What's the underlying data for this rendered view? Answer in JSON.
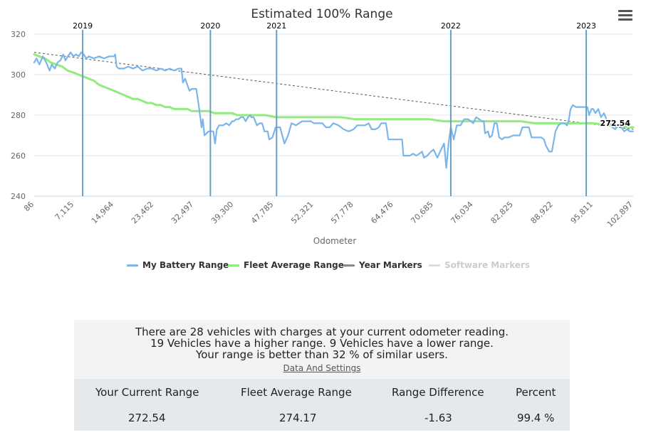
{
  "chart_data": {
    "type": "line",
    "title": "Estimated 100% Range",
    "xlabel": "Odometer",
    "ylabel": "",
    "ylim": [
      240,
      320
    ],
    "yticks": [
      240,
      260,
      280,
      300,
      320
    ],
    "xlim": [
      86,
      102897
    ],
    "xticks": [
      86,
      7115,
      14964,
      23462,
      32497,
      39300,
      47785,
      52321,
      57778,
      64476,
      70685,
      76034,
      82825,
      88922,
      95811,
      102897
    ],
    "xtick_labels": [
      "86",
      "7,115",
      "14,964",
      "23,462",
      "32,497",
      "39,300",
      "47,785",
      "52,321",
      "57,778",
      "64,476",
      "70,685",
      "76,034",
      "82,825",
      "88,922",
      "95,811",
      "102,897"
    ],
    "grid": true,
    "legend_position": "bottom",
    "year_markers": [
      {
        "label": "2019",
        "x": 8800
      },
      {
        "label": "2020",
        "x": 35300
      },
      {
        "label": "2021",
        "x": 48100
      },
      {
        "label": "2022",
        "x": 73000
      },
      {
        "label": "2023",
        "x": 94600
      }
    ],
    "trend_line": {
      "start": [
        86,
        311
      ],
      "end": [
        102897,
        273
      ]
    },
    "end_label": "272.54",
    "series": [
      {
        "name": "My Battery Range",
        "color": "#7cb5ec",
        "points": [
          [
            86,
            306
          ],
          [
            500,
            308
          ],
          [
            1000,
            305
          ],
          [
            1600,
            309
          ],
          [
            2200,
            306
          ],
          [
            2800,
            302
          ],
          [
            3200,
            305
          ],
          [
            3700,
            303
          ],
          [
            4200,
            306
          ],
          [
            4700,
            307
          ],
          [
            5200,
            310
          ],
          [
            5600,
            307
          ],
          [
            6000,
            309
          ],
          [
            6500,
            311
          ],
          [
            7000,
            309
          ],
          [
            7500,
            310
          ],
          [
            8000,
            309
          ],
          [
            8500,
            311
          ],
          [
            9000,
            310
          ],
          [
            9500,
            308
          ],
          [
            10000,
            309
          ],
          [
            11000,
            308
          ],
          [
            12000,
            309
          ],
          [
            13000,
            308
          ],
          [
            14000,
            309
          ],
          [
            14964,
            309
          ],
          [
            15200,
            310
          ],
          [
            15500,
            304
          ],
          [
            16000,
            303
          ],
          [
            17000,
            303
          ],
          [
            18000,
            304
          ],
          [
            19000,
            303
          ],
          [
            20000,
            304
          ],
          [
            21000,
            302
          ],
          [
            22000,
            303
          ],
          [
            23000,
            303
          ],
          [
            24000,
            302
          ],
          [
            25000,
            303
          ],
          [
            26000,
            302
          ],
          [
            27000,
            303
          ],
          [
            28000,
            302
          ],
          [
            29000,
            303
          ],
          [
            29700,
            303
          ],
          [
            30000,
            296
          ],
          [
            30500,
            298
          ],
          [
            31000,
            295
          ],
          [
            31500,
            292
          ],
          [
            32000,
            293
          ],
          [
            32700,
            293
          ],
          [
            32900,
            293
          ],
          [
            33200,
            287
          ],
          [
            33500,
            281
          ],
          [
            33800,
            274
          ],
          [
            34000,
            278
          ],
          [
            34300,
            270
          ],
          [
            35000,
            272
          ],
          [
            35800,
            272
          ],
          [
            36100,
            266
          ],
          [
            36400,
            273
          ],
          [
            36800,
            275
          ],
          [
            37500,
            275
          ],
          [
            38000,
            276
          ],
          [
            38500,
            275
          ],
          [
            39000,
            277
          ],
          [
            39300,
            277
          ],
          [
            39800,
            278
          ],
          [
            40300,
            278
          ],
          [
            40800,
            279
          ],
          [
            41300,
            279
          ],
          [
            41800,
            277
          ],
          [
            42300,
            279
          ],
          [
            42800,
            280
          ],
          [
            43000,
            279
          ],
          [
            43500,
            279
          ],
          [
            44200,
            275
          ],
          [
            44800,
            276
          ],
          [
            45300,
            276
          ],
          [
            45800,
            272
          ],
          [
            46500,
            272
          ],
          [
            46800,
            268
          ],
          [
            47500,
            269
          ],
          [
            48000,
            274
          ],
          [
            48500,
            274
          ],
          [
            49000,
            266
          ],
          [
            49400,
            270
          ],
          [
            49800,
            276
          ],
          [
            50300,
            275
          ],
          [
            51000,
            277
          ],
          [
            52000,
            277
          ],
          [
            52321,
            276
          ],
          [
            53000,
            276
          ],
          [
            53500,
            276
          ],
          [
            54000,
            274
          ],
          [
            54500,
            274
          ],
          [
            55000,
            276
          ],
          [
            55700,
            275
          ],
          [
            56400,
            273
          ],
          [
            57100,
            272
          ],
          [
            57778,
            273
          ],
          [
            58400,
            275
          ],
          [
            59000,
            275
          ],
          [
            59700,
            275
          ],
          [
            60300,
            276
          ],
          [
            60800,
            273
          ],
          [
            61400,
            273
          ],
          [
            62000,
            274
          ],
          [
            62400,
            276
          ],
          [
            62800,
            276
          ],
          [
            63200,
            276
          ],
          [
            63600,
            268
          ],
          [
            64000,
            268
          ],
          [
            64476,
            268
          ],
          [
            65000,
            268
          ],
          [
            65500,
            268
          ],
          [
            65800,
            268
          ],
          [
            66000,
            260
          ],
          [
            66500,
            260
          ],
          [
            67000,
            260
          ],
          [
            67500,
            261
          ],
          [
            68000,
            260
          ],
          [
            68500,
            261
          ],
          [
            68900,
            262
          ],
          [
            69200,
            259
          ],
          [
            69700,
            260
          ],
          [
            70300,
            262
          ],
          [
            70685,
            263
          ],
          [
            71200,
            259
          ],
          [
            71700,
            263
          ],
          [
            72100,
            266
          ],
          [
            72400,
            254
          ],
          [
            72700,
            266
          ],
          [
            73000,
            274
          ],
          [
            73400,
            268
          ],
          [
            73800,
            275
          ],
          [
            74300,
            275
          ],
          [
            74800,
            278
          ],
          [
            75300,
            278
          ],
          [
            75700,
            277
          ],
          [
            76000,
            276
          ],
          [
            76500,
            279
          ],
          [
            77000,
            278
          ],
          [
            77500,
            277
          ],
          [
            77800,
            277
          ],
          [
            78000,
            271
          ],
          [
            78500,
            272
          ],
          [
            78800,
            269
          ],
          [
            79200,
            270
          ],
          [
            79600,
            276
          ],
          [
            80000,
            276
          ],
          [
            80400,
            269
          ],
          [
            80900,
            268
          ],
          [
            81300,
            269
          ],
          [
            82000,
            269
          ],
          [
            82825,
            270
          ],
          [
            83400,
            270
          ],
          [
            83800,
            270
          ],
          [
            84200,
            274
          ],
          [
            84700,
            274
          ],
          [
            85200,
            274
          ],
          [
            85600,
            269
          ],
          [
            86100,
            269
          ],
          [
            86600,
            269
          ],
          [
            87100,
            269
          ],
          [
            87500,
            268
          ],
          [
            87800,
            265
          ],
          [
            88300,
            262
          ],
          [
            88700,
            262
          ],
          [
            88922,
            266
          ],
          [
            89300,
            272
          ],
          [
            89800,
            275
          ],
          [
            90300,
            276
          ],
          [
            90800,
            276
          ],
          [
            91300,
            275
          ],
          [
            91600,
            278
          ],
          [
            91900,
            283
          ],
          [
            92300,
            285
          ],
          [
            92800,
            284
          ],
          [
            93300,
            284
          ],
          [
            93800,
            284
          ],
          [
            94300,
            284
          ],
          [
            94800,
            284
          ],
          [
            95100,
            280
          ],
          [
            95500,
            283
          ],
          [
            95811,
            283
          ],
          [
            96200,
            281
          ],
          [
            96700,
            283
          ],
          [
            97200,
            279
          ],
          [
            97700,
            281
          ],
          [
            98300,
            277
          ],
          [
            98800,
            276
          ],
          [
            99200,
            274
          ],
          [
            99700,
            273
          ],
          [
            100300,
            275
          ],
          [
            100800,
            274
          ],
          [
            101300,
            272
          ],
          [
            101800,
            273
          ],
          [
            102300,
            272
          ],
          [
            102897,
            272
          ]
        ]
      },
      {
        "name": "Fleet Average Range",
        "color": "#90ed7d",
        "points": [
          [
            86,
            310
          ],
          [
            1000,
            309
          ],
          [
            2000,
            308
          ],
          [
            3000,
            306
          ],
          [
            4000,
            305
          ],
          [
            5000,
            304
          ],
          [
            6000,
            302
          ],
          [
            7000,
            301
          ],
          [
            8000,
            300
          ],
          [
            9000,
            299
          ],
          [
            10000,
            298
          ],
          [
            11000,
            297
          ],
          [
            12000,
            295
          ],
          [
            13000,
            294
          ],
          [
            14000,
            293
          ],
          [
            15000,
            292
          ],
          [
            16000,
            291
          ],
          [
            17000,
            290
          ],
          [
            18000,
            289
          ],
          [
            19000,
            288
          ],
          [
            20000,
            288
          ],
          [
            21000,
            287
          ],
          [
            22000,
            286
          ],
          [
            23000,
            286
          ],
          [
            24000,
            285
          ],
          [
            25000,
            285
          ],
          [
            26000,
            284
          ],
          [
            27000,
            284
          ],
          [
            28000,
            283
          ],
          [
            29000,
            283
          ],
          [
            30000,
            283
          ],
          [
            31000,
            283
          ],
          [
            32000,
            282
          ],
          [
            33000,
            282
          ],
          [
            34000,
            282
          ],
          [
            35000,
            282
          ],
          [
            36000,
            281
          ],
          [
            37000,
            281
          ],
          [
            38000,
            281
          ],
          [
            39000,
            281
          ],
          [
            40000,
            280
          ],
          [
            42000,
            280
          ],
          [
            44000,
            280
          ],
          [
            46000,
            280
          ],
          [
            48000,
            279
          ],
          [
            50000,
            279
          ],
          [
            52000,
            279
          ],
          [
            54000,
            279
          ],
          [
            56000,
            279
          ],
          [
            58000,
            278
          ],
          [
            60000,
            278
          ],
          [
            62000,
            278
          ],
          [
            64000,
            278
          ],
          [
            66000,
            278
          ],
          [
            68000,
            278
          ],
          [
            70000,
            278
          ],
          [
            72000,
            277
          ],
          [
            74000,
            277
          ],
          [
            76000,
            277
          ],
          [
            78000,
            277
          ],
          [
            80000,
            277
          ],
          [
            82000,
            277
          ],
          [
            84000,
            277
          ],
          [
            86000,
            276
          ],
          [
            88000,
            276
          ],
          [
            90000,
            276
          ],
          [
            92000,
            276
          ],
          [
            94000,
            276
          ],
          [
            96000,
            276
          ],
          [
            98000,
            275
          ],
          [
            100000,
            275
          ],
          [
            102000,
            274
          ],
          [
            102897,
            274
          ]
        ]
      },
      {
        "name": "Year Markers",
        "color": "#555555",
        "points": []
      },
      {
        "name": "Software Markers",
        "color": "#cccccc",
        "points": [],
        "disabled": true
      }
    ]
  },
  "toolbar": {
    "menu_icon": "hamburger-menu-icon"
  },
  "stats": {
    "line1": "There are 28 vehicles with charges at your current odometer reading.",
    "line2": "19 Vehicles have a higher range. 9 Vehicles have a lower range.",
    "line3": "Your range is better than 32 % of similar users.",
    "link": "Data And Settings",
    "headers": [
      "Your Current Range",
      "Fleet Average Range",
      "Range Difference",
      "Percent"
    ],
    "values": [
      "272.54",
      "274.17",
      "-1.63",
      "99.4 %"
    ]
  }
}
